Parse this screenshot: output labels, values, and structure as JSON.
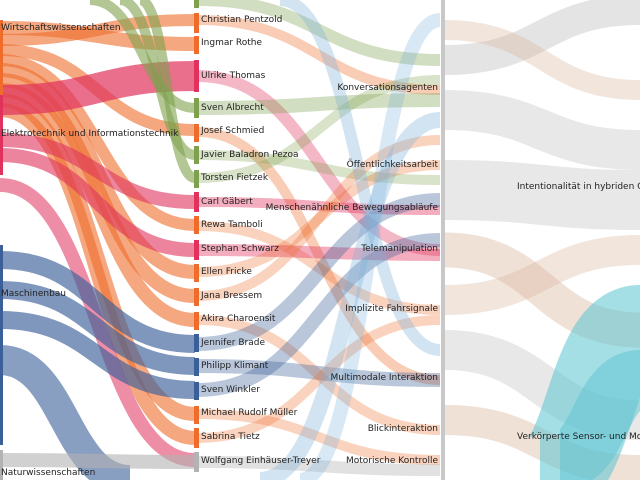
{
  "disciplines": [
    {
      "label": "Wirtschaftswissenschaften",
      "color": "#ef6c2b"
    },
    {
      "label": "Elektrotechnik und Informationstechnik",
      "color": "#e0325c"
    },
    {
      "label": "Maschinenbau",
      "color": "#3a5f99"
    },
    {
      "label": "Naturwissenschaften",
      "color": "#b3b3b3"
    }
  ],
  "people": [
    {
      "label": "Christian Pentzold",
      "color": "#ef6c2b"
    },
    {
      "label": "Ingmar Rothe",
      "color": "#ef6c2b"
    },
    {
      "label": "Ulrike Thomas",
      "color": "#e0325c"
    },
    {
      "label": "Sven Albrecht",
      "color": "#7fa14d"
    },
    {
      "label": "Josef Schmied",
      "color": "#ef6c2b"
    },
    {
      "label": "Javier Baladron Pezoa",
      "color": "#7fa14d"
    },
    {
      "label": "Torsten Fietzek",
      "color": "#7fa14d"
    },
    {
      "label": "Carl Gäbert",
      "color": "#e0325c"
    },
    {
      "label": "Rewa Tamboli",
      "color": "#ef6c2b"
    },
    {
      "label": "Stephan Schwarz",
      "color": "#e0325c"
    },
    {
      "label": "Ellen Fricke",
      "color": "#ef6c2b"
    },
    {
      "label": "Jana Bressem",
      "color": "#ef6c2b"
    },
    {
      "label": "Akira Charoensit",
      "color": "#ef6c2b"
    },
    {
      "label": "Jennifer Brade",
      "color": "#3a5f99"
    },
    {
      "label": "Philipp Klimant",
      "color": "#3a5f99"
    },
    {
      "label": "Sven Winkler",
      "color": "#3a5f99"
    },
    {
      "label": "Michael Rudolf Müller",
      "color": "#ef6c2b"
    },
    {
      "label": "Sabrina Tietz",
      "color": "#ef6c2b"
    },
    {
      "label": "Wolfgang Einhäuser-Treyer",
      "color": "#b3b3b3"
    }
  ],
  "topics": [
    {
      "label": "Konversationsagenten"
    },
    {
      "label": "Öffentlichkeitsarbeit"
    },
    {
      "label": "Menschenähnliche Bewegungsabläufe"
    },
    {
      "label": "Telemanipulation"
    },
    {
      "label": "Implizite Fahrsignale"
    },
    {
      "label": "Multimodale Interaktion"
    },
    {
      "label": "Blickinteraktion"
    },
    {
      "label": "Motorische Kontrolle"
    }
  ],
  "themes": [
    {
      "label": "Intentionalität in hybriden Ge"
    },
    {
      "label": "Verkörperte Sensor- und Moto"
    }
  ],
  "colors": {
    "orange": "#ef6c2b",
    "red": "#e0325c",
    "blue": "#3a5f99",
    "green": "#7fa14d",
    "gray": "#b3b3b3",
    "teal": "#5bc4d1",
    "tan": "#d9b49a",
    "lightblue": "#7fb3d9"
  }
}
